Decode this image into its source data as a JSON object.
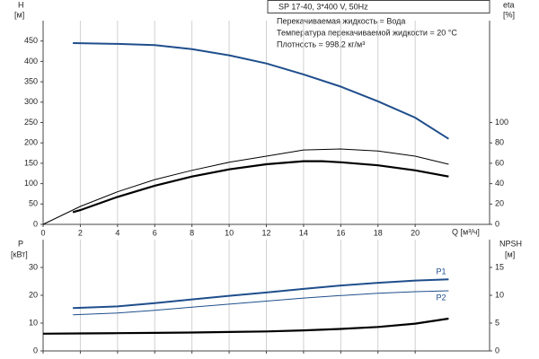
{
  "chart_data": [
    {
      "type": "line",
      "header": "SP 17-40, 3*400 V, 50Hz",
      "annotations": [
        "Перекачиваемая жидкость = Вода",
        "Температура перекачиваемой жидкости = 20 °C",
        "Плотность = 998.2 кг/м³"
      ],
      "ylabel": "H",
      "yunit": "[м]",
      "y2label": "eta",
      "y2unit": "[%]",
      "xlabel": "Q [м³/ч]",
      "xlim": [
        0,
        24
      ],
      "xticks": [
        0,
        2,
        4,
        6,
        8,
        10,
        12,
        14,
        16,
        18,
        20
      ],
      "ylim": [
        0,
        500
      ],
      "yticks": [
        0,
        50,
        100,
        150,
        200,
        250,
        300,
        350,
        400,
        450
      ],
      "y2lim": [
        0,
        200
      ],
      "y2ticks": [
        0,
        20,
        40,
        60,
        80,
        100
      ],
      "grid": "x",
      "xtick_labels": true,
      "series": [
        {
          "color": "#1f4e8c",
          "linewidth": 2,
          "x": [
            1.6,
            4,
            6,
            8,
            10,
            12,
            14,
            16,
            18,
            20,
            21.8
          ],
          "values": [
            445,
            443,
            440,
            430,
            415,
            395,
            368,
            338,
            302,
            262,
            210
          ]
        },
        {
          "color": "#000000",
          "linewidth": 1,
          "axis": "y2",
          "x": [
            0,
            2,
            4,
            6,
            8,
            10,
            12,
            14,
            16,
            18,
            20,
            21.8
          ],
          "values": [
            0,
            17.6,
            32,
            44,
            53,
            61,
            67,
            73,
            74,
            72,
            67,
            59
          ]
        },
        {
          "color": "#000000",
          "linewidth": 2.2,
          "axis": "y2",
          "x": [
            1.6,
            2,
            4,
            6,
            8,
            10,
            12,
            14,
            15,
            16,
            18,
            20,
            21.8
          ],
          "values": [
            12,
            14,
            27,
            38,
            47,
            54,
            59,
            62,
            62,
            61,
            58,
            53,
            47
          ]
        }
      ]
    },
    {
      "type": "line",
      "ylabel": "P",
      "yunit": "[кВт]",
      "y2label": "NPSH",
      "y2unit": "[м]",
      "xlim": [
        0,
        24
      ],
      "xticks": [
        0,
        2,
        4,
        6,
        8,
        10,
        12,
        14,
        16,
        18,
        20
      ],
      "ylim": [
        0,
        40
      ],
      "yticks": [
        0,
        10,
        20,
        30
      ],
      "y2lim": [
        0,
        20
      ],
      "y2ticks": [
        0,
        5,
        10,
        15
      ],
      "grid": "x",
      "xtick_labels": false,
      "series": [
        {
          "name": "P1",
          "color": "#1f4e8c",
          "linewidth": 2,
          "x": [
            1.6,
            4,
            6,
            8,
            10,
            12,
            14,
            16,
            18,
            20,
            21.8
          ],
          "values": [
            15.4,
            16,
            17.2,
            18.5,
            19.8,
            21,
            22.3,
            23.5,
            24.5,
            25.3,
            25.7
          ]
        },
        {
          "name": "P2",
          "color": "#1f4e8c",
          "linewidth": 1,
          "x": [
            1.6,
            4,
            6,
            8,
            10,
            12,
            14,
            16,
            18,
            20,
            21.8
          ],
          "values": [
            13,
            13.6,
            14.6,
            15.7,
            16.8,
            17.9,
            19,
            19.9,
            20.7,
            21.3,
            21.6
          ]
        },
        {
          "color": "#000000",
          "linewidth": 2.2,
          "axis": "y2",
          "x": [
            0,
            2,
            4,
            6,
            8,
            10,
            12,
            14,
            16,
            18,
            20,
            21.8
          ],
          "values": [
            3.1,
            3.15,
            3.2,
            3.25,
            3.3,
            3.4,
            3.5,
            3.7,
            3.95,
            4.3,
            4.9,
            5.8
          ]
        }
      ]
    }
  ]
}
